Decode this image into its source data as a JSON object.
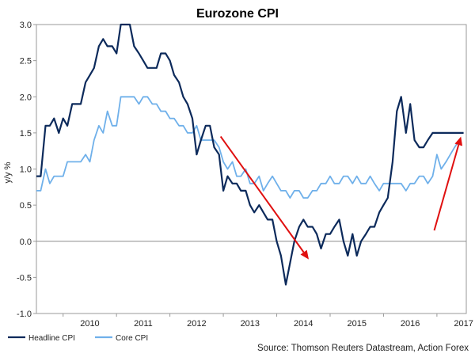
{
  "chart_data": {
    "type": "line",
    "title": "Eurozone CPI",
    "ylabel": "y/y %",
    "xlabel": "",
    "ylim": [
      -1.0,
      3.0
    ],
    "yticks": [
      "3.0",
      "2.5",
      "2.0",
      "1.5",
      "1.0",
      "0.5",
      "0.0",
      "-0.5",
      "-1.0"
    ],
    "ytick_values": [
      3.0,
      2.5,
      2.0,
      1.5,
      1.0,
      0.5,
      0.0,
      -0.5,
      -1.0
    ],
    "xlim": [
      2009.5,
      2017.55
    ],
    "xticks": [
      "2010",
      "2011",
      "2012",
      "2013",
      "2014",
      "2015",
      "2016",
      "2017"
    ],
    "xtick_values": [
      2010,
      2011,
      2012,
      2013,
      2014,
      2015,
      2016,
      2017
    ],
    "grid": false,
    "zero_line": true,
    "legend_position": "bottom-left",
    "series": [
      {
        "name": "Headline CPI",
        "color": "#0c2a5b",
        "x": [
          2009.5,
          2009.58,
          2009.67,
          2009.75,
          2009.83,
          2009.92,
          2010.0,
          2010.08,
          2010.17,
          2010.25,
          2010.33,
          2010.42,
          2010.5,
          2010.58,
          2010.67,
          2010.75,
          2010.83,
          2010.92,
          2011.0,
          2011.08,
          2011.17,
          2011.25,
          2011.33,
          2011.42,
          2011.5,
          2011.58,
          2011.67,
          2011.75,
          2011.83,
          2011.92,
          2012.0,
          2012.08,
          2012.17,
          2012.25,
          2012.33,
          2012.42,
          2012.5,
          2012.58,
          2012.67,
          2012.75,
          2012.83,
          2012.92,
          2013.0,
          2013.08,
          2013.17,
          2013.25,
          2013.33,
          2013.42,
          2013.5,
          2013.58,
          2013.67,
          2013.75,
          2013.83,
          2013.92,
          2014.0,
          2014.08,
          2014.17,
          2014.25,
          2014.33,
          2014.42,
          2014.5,
          2014.58,
          2014.67,
          2014.75,
          2014.83,
          2014.92,
          2015.0,
          2015.08,
          2015.17,
          2015.25,
          2015.33,
          2015.42,
          2015.5,
          2015.58,
          2015.67,
          2015.75,
          2015.83,
          2015.92,
          2016.0,
          2016.08,
          2016.17,
          2016.25,
          2016.33,
          2016.42,
          2016.5,
          2016.58,
          2016.67,
          2016.75,
          2016.83,
          2016.92,
          2017.0,
          2017.08,
          2017.17,
          2017.25,
          2017.33,
          2017.42,
          2017.5
        ],
        "values": [
          0.9,
          0.9,
          1.6,
          1.6,
          1.7,
          1.5,
          1.7,
          1.6,
          1.9,
          1.9,
          1.9,
          2.2,
          2.3,
          2.4,
          2.7,
          2.8,
          2.7,
          2.7,
          2.6,
          3.0,
          3.0,
          3.0,
          2.7,
          2.6,
          2.5,
          2.4,
          2.4,
          2.4,
          2.6,
          2.6,
          2.5,
          2.3,
          2.2,
          2.0,
          1.9,
          1.7,
          1.2,
          1.4,
          1.6,
          1.6,
          1.3,
          1.2,
          0.7,
          0.9,
          0.8,
          0.8,
          0.7,
          0.7,
          0.5,
          0.4,
          0.5,
          0.4,
          0.3,
          0.3,
          0.0,
          -0.2,
          -0.6,
          -0.3,
          0.0,
          0.2,
          0.3,
          0.2,
          0.2,
          0.1,
          -0.1,
          0.1,
          0.1,
          0.2,
          0.3,
          0.0,
          -0.2,
          0.1,
          -0.2,
          0.0,
          0.1,
          0.2,
          0.2,
          0.4,
          0.5,
          0.6,
          1.1,
          1.8,
          2.0,
          1.5,
          1.9,
          1.4,
          1.3,
          1.3,
          1.4,
          1.5,
          1.5,
          1.5,
          1.5,
          1.5,
          1.5,
          1.5,
          1.5
        ]
      },
      {
        "name": "Core CPI",
        "color": "#6fb0ea",
        "x": [
          2009.5,
          2009.58,
          2009.67,
          2009.75,
          2009.83,
          2009.92,
          2010.0,
          2010.08,
          2010.17,
          2010.25,
          2010.33,
          2010.42,
          2010.5,
          2010.58,
          2010.67,
          2010.75,
          2010.83,
          2010.92,
          2011.0,
          2011.08,
          2011.17,
          2011.25,
          2011.33,
          2011.42,
          2011.5,
          2011.58,
          2011.67,
          2011.75,
          2011.83,
          2011.92,
          2012.0,
          2012.08,
          2012.17,
          2012.25,
          2012.33,
          2012.42,
          2012.5,
          2012.58,
          2012.67,
          2012.75,
          2012.83,
          2012.92,
          2013.0,
          2013.08,
          2013.17,
          2013.25,
          2013.33,
          2013.42,
          2013.5,
          2013.58,
          2013.67,
          2013.75,
          2013.83,
          2013.92,
          2014.0,
          2014.08,
          2014.17,
          2014.25,
          2014.33,
          2014.42,
          2014.5,
          2014.58,
          2014.67,
          2014.75,
          2014.83,
          2014.92,
          2015.0,
          2015.08,
          2015.17,
          2015.25,
          2015.33,
          2015.42,
          2015.5,
          2015.58,
          2015.67,
          2015.75,
          2015.83,
          2015.92,
          2016.0,
          2016.08,
          2016.17,
          2016.25,
          2016.33,
          2016.42,
          2016.5,
          2016.58,
          2016.67,
          2016.75,
          2016.83,
          2016.92,
          2017.0,
          2017.08,
          2017.17,
          2017.25,
          2017.33,
          2017.42
        ],
        "values": [
          0.7,
          0.7,
          1.0,
          0.8,
          0.9,
          0.9,
          0.9,
          1.1,
          1.1,
          1.1,
          1.1,
          1.2,
          1.1,
          1.4,
          1.6,
          1.5,
          1.8,
          1.6,
          1.6,
          2.0,
          2.0,
          2.0,
          2.0,
          1.9,
          2.0,
          2.0,
          1.9,
          1.9,
          1.8,
          1.8,
          1.7,
          1.7,
          1.6,
          1.6,
          1.5,
          1.5,
          1.6,
          1.4,
          1.4,
          1.4,
          1.4,
          1.3,
          1.1,
          1.0,
          1.1,
          0.9,
          0.9,
          1.0,
          0.8,
          0.8,
          0.9,
          0.7,
          0.8,
          0.9,
          0.8,
          0.7,
          0.7,
          0.6,
          0.7,
          0.7,
          0.6,
          0.6,
          0.7,
          0.7,
          0.8,
          0.8,
          0.9,
          0.8,
          0.8,
          0.9,
          0.9,
          0.8,
          0.9,
          0.8,
          0.8,
          0.9,
          0.8,
          0.7,
          0.8,
          0.8,
          0.8,
          0.8,
          0.8,
          0.7,
          0.8,
          0.8,
          0.9,
          0.9,
          0.8,
          0.9,
          1.2,
          1.0,
          1.1,
          1.2,
          1.3,
          1.4
        ]
      }
    ],
    "annotations": [
      {
        "type": "arrow",
        "color": "#e01010",
        "from": [
          2012.95,
          1.45
        ],
        "to": [
          2014.6,
          -0.25
        ]
      },
      {
        "type": "arrow",
        "color": "#e01010",
        "from": [
          2016.95,
          0.15
        ],
        "to": [
          2017.45,
          1.45
        ]
      }
    ],
    "source": "Source: Thomson Reuters Datastream, Action Forex"
  }
}
